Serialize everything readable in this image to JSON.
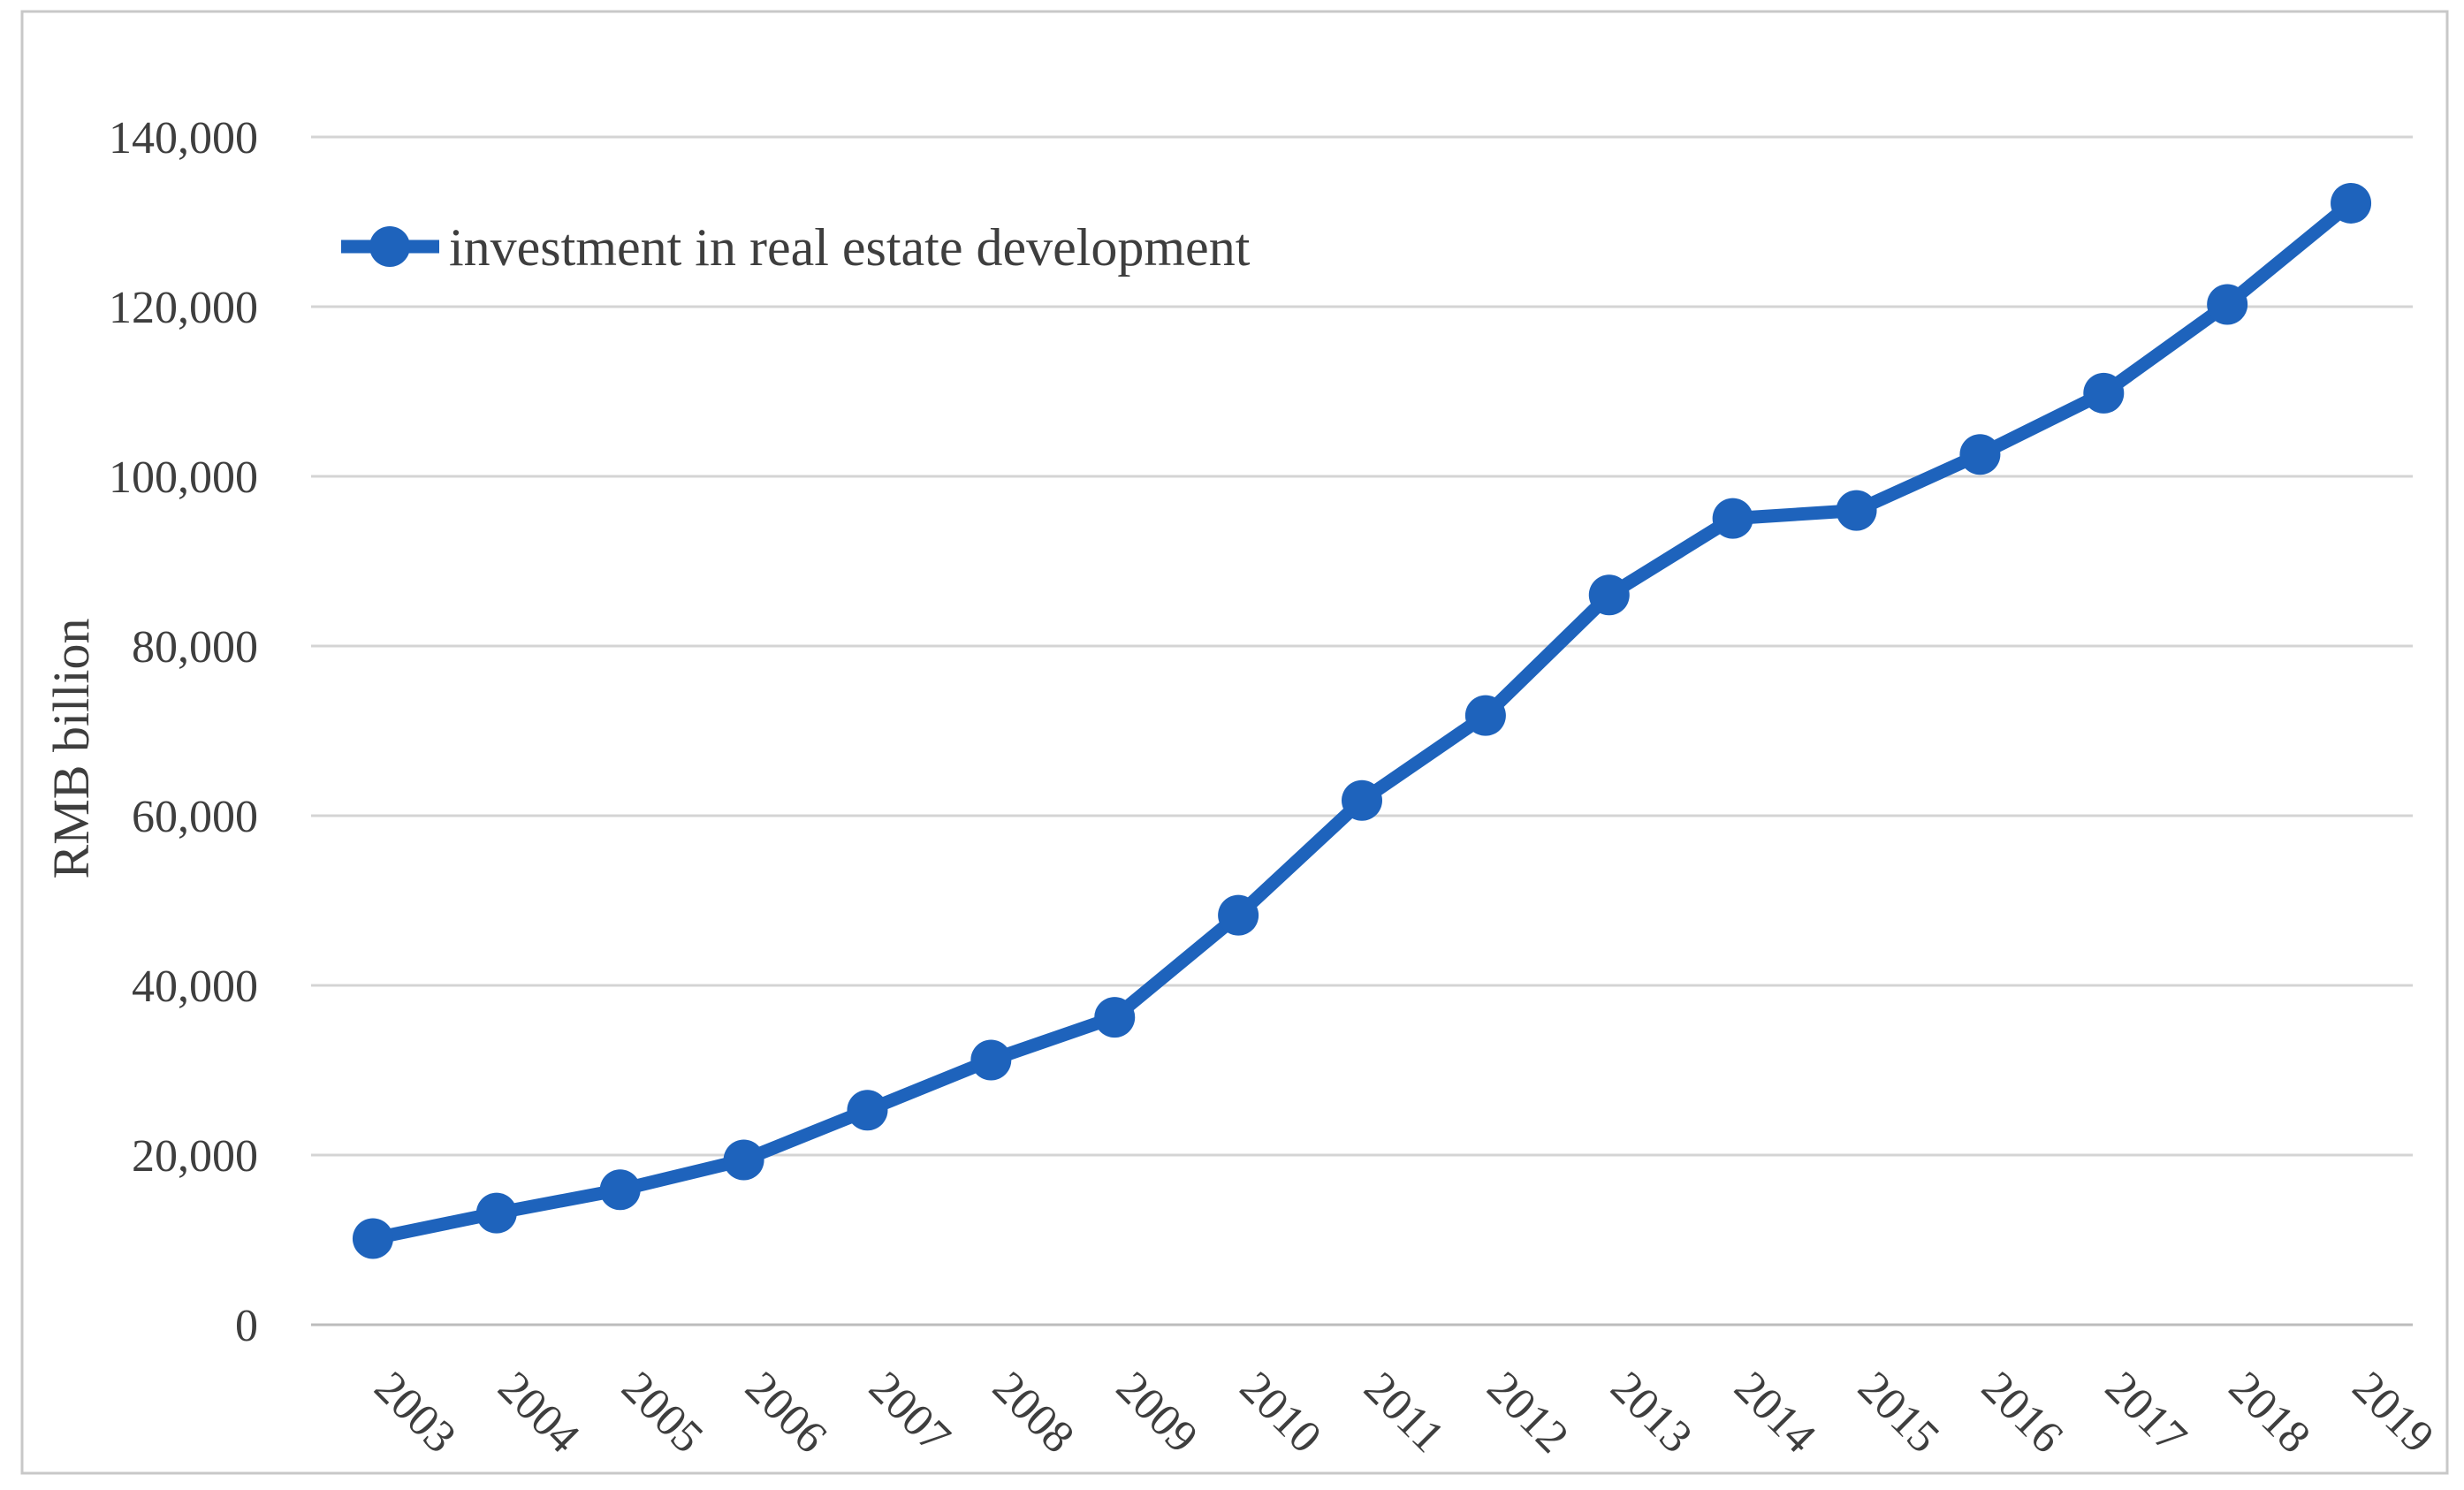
{
  "chart_data": {
    "type": "line",
    "title": "",
    "xlabel": "",
    "ylabel": "RMB billion",
    "categories": [
      2003,
      2004,
      2005,
      2006,
      2007,
      2008,
      2009,
      2010,
      2011,
      2012,
      2013,
      2014,
      2015,
      2016,
      2017,
      2018,
      2019
    ],
    "series": [
      {
        "name": "investment in real estate development",
        "values": [
          10154,
          13158,
          15909,
          19423,
          25289,
          31203,
          36242,
          48267,
          61797,
          71804,
          86013,
          95036,
          95979,
          102581,
          109799,
          120264,
          132194
        ],
        "color": "#1e63bc",
        "marker": "circle"
      }
    ],
    "ylim": [
      0,
      140000
    ],
    "ytick_step": 20000,
    "ytick_labels": [
      "0",
      "20,000",
      "40,000",
      "60,000",
      "80,000",
      "100,000",
      "120,000",
      "140,000"
    ],
    "grid": true,
    "legend_position": "inside-top-left",
    "x_label_rotation_deg": 45
  },
  "styles": {
    "line_color": "#1e63bc",
    "marker_color": "#1e63bc",
    "grid_color": "#d4d4d4",
    "axis_line_color": "#bcbcbc",
    "text_color": "#3e3e3e",
    "border_color": "#c8c8c8",
    "background": "#ffffff"
  }
}
